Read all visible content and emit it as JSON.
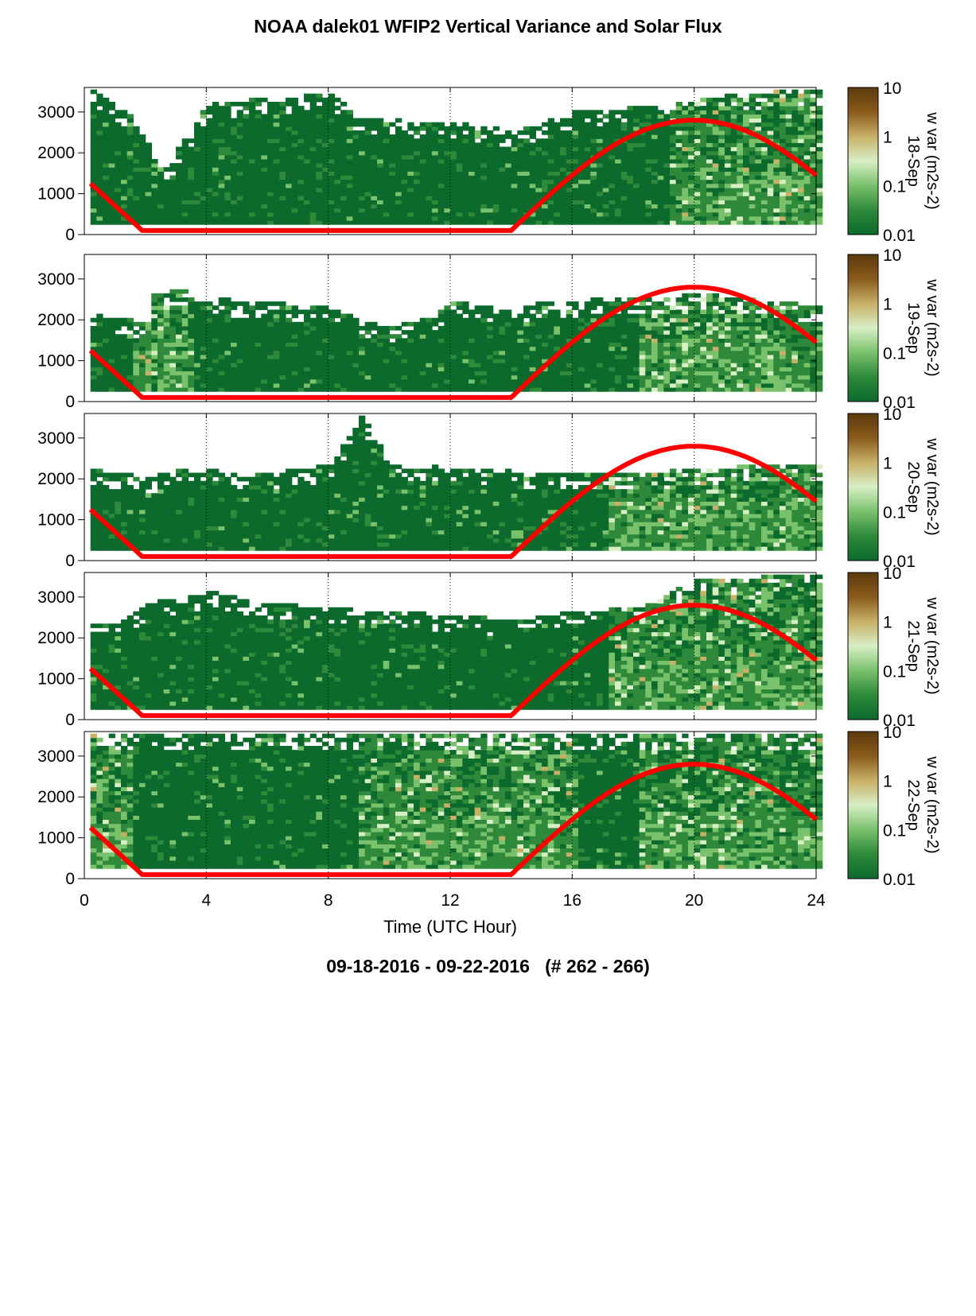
{
  "title": "NOAA dalek01 WFIP2 Vertical Variance and Solar Flux",
  "footer": "09-18-2016 - 09-22-2016   (# 262 - 266)",
  "colors": {
    "solar_curve": "#ff0000",
    "colormap": [
      "#0b6a2c",
      "#2e8a3a",
      "#79c16b",
      "#d8efc6",
      "#c7b067",
      "#8a5a1a",
      "#5c3a0e"
    ]
  },
  "chart_data": [
    {
      "type": "heatmap",
      "panel_label": "18-Sep",
      "xlabel": "Time (UTC Hour)",
      "xlim": [
        0,
        24
      ],
      "xticks": [
        "0",
        "4",
        "8",
        "12",
        "16",
        "20",
        "24"
      ],
      "ylim": [
        0,
        3600
      ],
      "yticks": [
        "0",
        "1000",
        "2000",
        "3000"
      ],
      "colorbar_label": "w var (m2s-2)",
      "colorbar_scale": "log",
      "colorbar_ticks": [
        "0.01",
        "0.1",
        "1",
        "10"
      ],
      "clim": [
        0.01,
        10
      ],
      "grid": "vertical dotted at 4-hour ticks",
      "data_top_profile": [
        [
          0,
          3600
        ],
        [
          1.5,
          2800
        ],
        [
          2.5,
          1500
        ],
        [
          4,
          3200
        ],
        [
          8,
          3400
        ],
        [
          9,
          2800
        ],
        [
          12,
          2700
        ],
        [
          14,
          2500
        ],
        [
          16,
          3000
        ],
        [
          19,
          3100
        ],
        [
          21,
          3400
        ],
        [
          24,
          3500
        ]
      ],
      "data_bottom_m": 250,
      "enhanced_variance_hours": [
        [
          19,
          24
        ]
      ],
      "solar_flux": [
        [
          0.2,
          1250
        ],
        [
          1.9,
          100
        ],
        [
          14,
          100
        ],
        [
          16,
          1400
        ],
        [
          18,
          2400
        ],
        [
          20,
          2800
        ],
        [
          22,
          2500
        ],
        [
          24,
          1450
        ]
      ]
    },
    {
      "type": "heatmap",
      "panel_label": "19-Sep",
      "xlim": [
        0,
        24
      ],
      "ylim": [
        0,
        3600
      ],
      "colorbar_label": "w var (m2s-2)",
      "colorbar_ticks": [
        "0.01",
        "0.1",
        "1",
        "10"
      ],
      "data_top_profile": [
        [
          0,
          2100
        ],
        [
          2,
          1900
        ],
        [
          2.2,
          2600
        ],
        [
          3,
          2700
        ],
        [
          5,
          2400
        ],
        [
          8,
          2300
        ],
        [
          9,
          1900
        ],
        [
          10,
          1800
        ],
        [
          11.5,
          2100
        ],
        [
          12,
          2400
        ],
        [
          14,
          2200
        ],
        [
          15,
          2400
        ],
        [
          18,
          2500
        ],
        [
          20,
          2600
        ],
        [
          24,
          2300
        ]
      ],
      "data_bottom_m": 250,
      "enhanced_variance_hours": [
        [
          1.5,
          3.5
        ],
        [
          18,
          24
        ]
      ],
      "solar_flux": [
        [
          0.2,
          1250
        ],
        [
          1.9,
          100
        ],
        [
          14,
          100
        ],
        [
          16,
          1400
        ],
        [
          18,
          2400
        ],
        [
          20,
          2800
        ],
        [
          22,
          2500
        ],
        [
          24,
          1450
        ]
      ]
    },
    {
      "type": "heatmap",
      "panel_label": "20-Sep",
      "xlim": [
        0,
        24
      ],
      "ylim": [
        0,
        3600
      ],
      "colorbar_label": "w var (m2s-2)",
      "colorbar_ticks": [
        "0.01",
        "0.1",
        "1",
        "10"
      ],
      "data_top_profile": [
        [
          0,
          2200
        ],
        [
          2,
          2000
        ],
        [
          3,
          2200
        ],
        [
          6,
          2100
        ],
        [
          8,
          2300
        ],
        [
          9,
          3500
        ],
        [
          10,
          2300
        ],
        [
          13,
          2200
        ],
        [
          15,
          2100
        ],
        [
          18,
          2100
        ],
        [
          22,
          2300
        ],
        [
          24,
          2300
        ]
      ],
      "data_bottom_m": 250,
      "enhanced_variance_hours": [
        [
          17,
          24
        ]
      ],
      "solar_flux": [
        [
          0.2,
          1250
        ],
        [
          1.9,
          100
        ],
        [
          14,
          100
        ],
        [
          16,
          1400
        ],
        [
          18,
          2400
        ],
        [
          20,
          2800
        ],
        [
          22,
          2500
        ],
        [
          24,
          1450
        ]
      ]
    },
    {
      "type": "heatmap",
      "panel_label": "21-Sep",
      "xlim": [
        0,
        24
      ],
      "ylim": [
        0,
        3600
      ],
      "colorbar_label": "w var (m2s-2)",
      "colorbar_ticks": [
        "0.01",
        "0.1",
        "1",
        "10"
      ],
      "data_top_profile": [
        [
          0,
          2300
        ],
        [
          1,
          2300
        ],
        [
          1.5,
          2600
        ],
        [
          2,
          2800
        ],
        [
          4,
          3100
        ],
        [
          6,
          2800
        ],
        [
          8,
          2700
        ],
        [
          10,
          2600
        ],
        [
          12,
          2500
        ],
        [
          14,
          2400
        ],
        [
          16,
          2600
        ],
        [
          18,
          2700
        ],
        [
          19,
          3000
        ],
        [
          20,
          3400
        ],
        [
          24,
          3500
        ]
      ],
      "data_bottom_m": 250,
      "enhanced_variance_hours": [
        [
          17,
          24
        ]
      ],
      "solar_flux": [
        [
          0.2,
          1250
        ],
        [
          1.9,
          100
        ],
        [
          14,
          100
        ],
        [
          16,
          1400
        ],
        [
          18,
          2400
        ],
        [
          20,
          2800
        ],
        [
          22,
          2500
        ],
        [
          24,
          1450
        ]
      ]
    },
    {
      "type": "heatmap",
      "panel_label": "22-Sep",
      "xlim": [
        0,
        24
      ],
      "ylim": [
        0,
        3600
      ],
      "colorbar_label": "w var (m2s-2)",
      "colorbar_ticks": [
        "0.01",
        "0.1",
        "1",
        "10"
      ],
      "data_top_profile": [
        [
          0,
          3500
        ],
        [
          24,
          3500
        ]
      ],
      "data_bottom_m": 250,
      "enhanced_variance_hours": [
        [
          0,
          1.5
        ],
        [
          9,
          16
        ],
        [
          18,
          24
        ]
      ],
      "solar_flux": [
        [
          0.2,
          1250
        ],
        [
          1.9,
          100
        ],
        [
          14,
          100
        ],
        [
          16,
          1400
        ],
        [
          18,
          2400
        ],
        [
          20,
          2800
        ],
        [
          22,
          2500
        ],
        [
          24,
          1450
        ]
      ]
    }
  ]
}
